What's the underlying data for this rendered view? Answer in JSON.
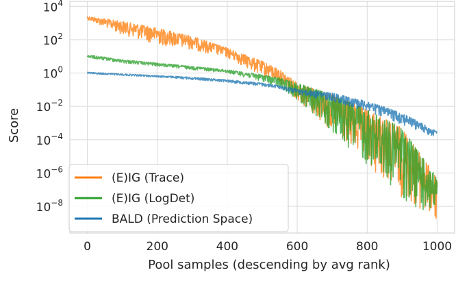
{
  "chart_data": {
    "type": "line",
    "title": "",
    "xlabel": "Pool samples (descending by avg rank)",
    "ylabel": "Score",
    "xlim": [
      -50,
      1050
    ],
    "ylim_log10": [
      -9.6,
      4.3
    ],
    "yscale": "log",
    "grid": true,
    "legend_position": "lower-left",
    "x_ticks": [
      0,
      200,
      400,
      600,
      800,
      1000
    ],
    "y_ticks": [
      {
        "base": "10",
        "exp": "4",
        "value": 10000
      },
      {
        "base": "10",
        "exp": "2",
        "value": 100
      },
      {
        "base": "10",
        "exp": "0",
        "value": 1
      },
      {
        "base": "10",
        "exp": "−2",
        "value": 0.01
      },
      {
        "base": "10",
        "exp": "−4",
        "value": 0.0001
      },
      {
        "base": "10",
        "exp": "−6",
        "value": 1e-06
      },
      {
        "base": "10",
        "exp": "−8",
        "value": 1e-08
      }
    ],
    "series": [
      {
        "name": "(E)IG (Trace)",
        "color": "#ff7f0e",
        "envelope_x": [
          0,
          100,
          200,
          300,
          400,
          500,
          550,
          600,
          700,
          800,
          900,
          1000
        ],
        "envelope_log10_upper": [
          3.4,
          3.1,
          2.7,
          2.2,
          1.5,
          0.7,
          0.2,
          -0.6,
          -1.3,
          -2.2,
          -3.3,
          -6.3
        ],
        "envelope_log10_lower": [
          3.2,
          2.3,
          1.7,
          1.4,
          0.9,
          -0.2,
          -0.6,
          -1.6,
          -3.6,
          -5.6,
          -7.5,
          -9.0
        ]
      },
      {
        "name": "(E)IG (LogDet)",
        "color": "#2ca02c",
        "envelope_x": [
          0,
          100,
          200,
          300,
          400,
          500,
          550,
          600,
          700,
          800,
          900,
          1000
        ],
        "envelope_log10_upper": [
          1.1,
          0.8,
          0.6,
          0.4,
          0.2,
          -0.1,
          -0.3,
          -0.6,
          -1.3,
          -2.2,
          -3.3,
          -6.3
        ],
        "envelope_log10_lower": [
          0.9,
          0.6,
          0.4,
          0.2,
          0.0,
          -0.5,
          -0.9,
          -1.6,
          -3.6,
          -5.6,
          -7.5,
          -9.0
        ]
      },
      {
        "name": "BALD (Prediction Space)",
        "color": "#1f77b4",
        "envelope_x": [
          0,
          100,
          200,
          300,
          400,
          500,
          550,
          600,
          700,
          800,
          900,
          1000
        ],
        "envelope_log10_upper": [
          0.05,
          -0.05,
          -0.15,
          -0.25,
          -0.4,
          -0.6,
          -0.75,
          -0.95,
          -1.2,
          -1.7,
          -2.4,
          -3.5
        ],
        "envelope_log10_lower": [
          -0.05,
          -0.15,
          -0.25,
          -0.4,
          -0.55,
          -0.8,
          -0.95,
          -1.3,
          -1.7,
          -2.3,
          -3.1,
          -3.9
        ]
      }
    ]
  }
}
